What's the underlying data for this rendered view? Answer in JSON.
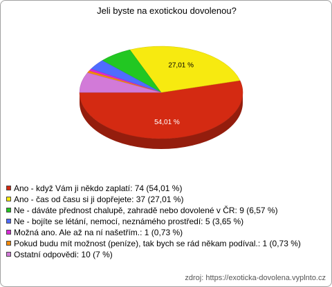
{
  "chart_data": {
    "type": "pie3d",
    "title": "Jeli byste na exotickou dovolenou?",
    "categories": [
      "Ano - když Vám ji někdo zaplatí: 74 (54,01 %)",
      "Ano - čas od času si ji dopřejete: 37 (27,01 %)",
      "Ne - dáváte přednost chalupě, zahradě nebo dovolené v ČR: 9 (6,57 %)",
      "Ne - bojíte se létání, nemocí, neznámého prostředí: 5 (3,65 %)",
      "Možná ano. Ale až na ní našetřím.: 1 (0,73 %)",
      "Pokud budu mít možnost (peníze), tak bych se rád někam podíval.: 1 (0,73 %)",
      "Ostatní odpovědi: 10 (7 %)"
    ],
    "values": [
      54.01,
      27.01,
      6.57,
      3.65,
      0.73,
      0.73,
      7
    ],
    "value_labels": [
      "54,01 %",
      "27,01 %",
      null,
      null,
      null,
      null,
      null
    ],
    "colors": [
      "#d42a12",
      "#f7ea10",
      "#22c722",
      "#4f6cff",
      "#d82ad8",
      "#f58a0a",
      "#d27ad8"
    ],
    "source": "zdroj: https://exoticka-dovolena.vyplnto.cz"
  }
}
